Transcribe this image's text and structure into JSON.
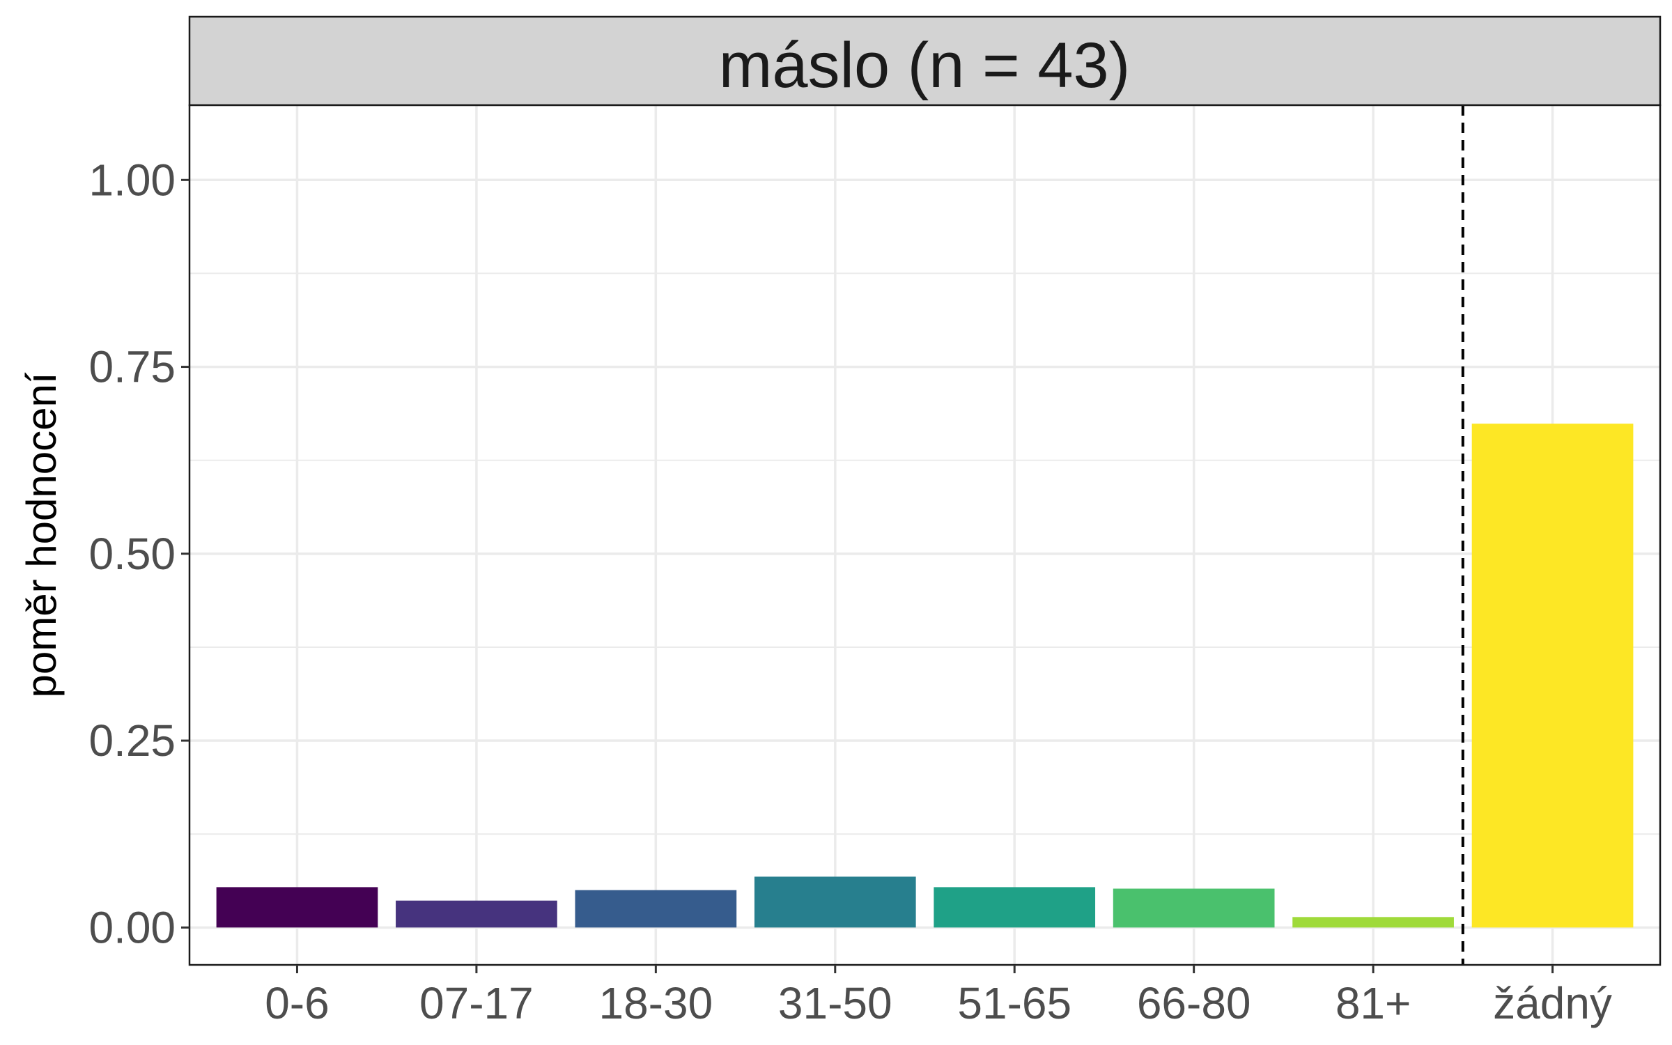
{
  "chart_data": {
    "type": "bar",
    "facet_title": "máslo (n = 43)",
    "ylabel": "poměr hodnocení",
    "xlabel": "",
    "categories": [
      "0-6",
      "07-17",
      "18-30",
      "31-50",
      "51-65",
      "66-80",
      "81+",
      "žádný"
    ],
    "values": [
      0.054,
      0.036,
      0.05,
      0.068,
      0.054,
      0.052,
      0.014,
      0.674
    ],
    "colors": [
      "#440154",
      "#46337E",
      "#365C8D",
      "#277F8E",
      "#1FA187",
      "#4AC16D",
      "#9FDA3A",
      "#FDE725"
    ],
    "ylim": [
      -0.05,
      1.1
    ],
    "yticks": [
      0.0,
      0.25,
      0.5,
      0.75,
      1.0
    ],
    "ytick_labels": [
      "0.00",
      "0.25",
      "0.50",
      "0.75",
      "1.00"
    ],
    "separator": {
      "style": "dashed",
      "between": [
        "81+",
        "žádný"
      ]
    },
    "grid": true,
    "legend": "none"
  }
}
